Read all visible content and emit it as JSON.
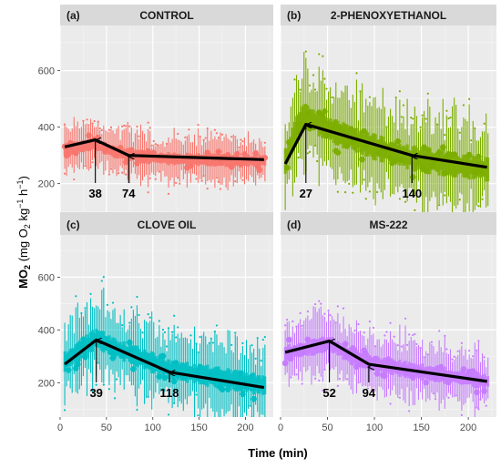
{
  "chart_data": {
    "type": "line",
    "y_axis_label": "MO",
    "y_axis_label_sub": "2",
    "y_axis_units": "(mg O",
    "y_axis_units_sub": "2",
    "y_axis_units_rest": " kg",
    "y_axis_units_sup1": "−1",
    "y_axis_units_h": " h",
    "y_axis_units_sup2": "−1",
    "y_axis_units_close": ")",
    "x_axis_label": "Time (min)",
    "xlim": [
      0,
      230
    ],
    "ylim": [
      70,
      760
    ],
    "x_ticks": [
      0,
      50,
      100,
      150,
      200
    ],
    "y_ticks": [
      200,
      400,
      600
    ],
    "panels": [
      {
        "tag": "(a)",
        "title": "CONTROL",
        "color": "#F8766D",
        "trend": [
          [
            5,
            330
          ],
          [
            38,
            355
          ],
          [
            74,
            300
          ],
          [
            220,
            285
          ]
        ],
        "annotations": [
          {
            "label": "38",
            "x": 38,
            "y": 355,
            "direction": "up"
          },
          {
            "label": "74",
            "x": 74,
            "y": 300,
            "direction": "up"
          }
        ],
        "median_profile": [
          [
            5,
            320
          ],
          [
            20,
            330
          ],
          [
            38,
            340
          ],
          [
            60,
            310
          ],
          [
            100,
            290
          ],
          [
            150,
            285
          ],
          [
            220,
            280
          ]
        ],
        "spread": 80
      },
      {
        "tag": "(b)",
        "title": "2-PHENOXYETHANOL",
        "color": "#7CAE00",
        "trend": [
          [
            5,
            270
          ],
          [
            27,
            410
          ],
          [
            140,
            300
          ],
          [
            220,
            258
          ]
        ],
        "annotations": [
          {
            "label": "27",
            "x": 27,
            "y": 410,
            "direction": "up"
          },
          {
            "label": "140",
            "x": 140,
            "y": 300,
            "direction": "up"
          }
        ],
        "median_profile": [
          [
            5,
            280
          ],
          [
            20,
            420
          ],
          [
            27,
            440
          ],
          [
            60,
            380
          ],
          [
            100,
            330
          ],
          [
            140,
            290
          ],
          [
            220,
            250
          ]
        ],
        "spread": 160
      },
      {
        "tag": "(c)",
        "title": "CLOVE OIL",
        "color": "#00BFC4",
        "trend": [
          [
            5,
            270
          ],
          [
            39,
            362
          ],
          [
            118,
            240
          ],
          [
            220,
            182
          ]
        ],
        "annotations": [
          {
            "label": "39",
            "x": 39,
            "y": 362,
            "direction": "up"
          },
          {
            "label": "118",
            "x": 118,
            "y": 240,
            "direction": "up"
          }
        ],
        "median_profile": [
          [
            5,
            280
          ],
          [
            25,
            330
          ],
          [
            39,
            370
          ],
          [
            60,
            330
          ],
          [
            90,
            290
          ],
          [
            118,
            250
          ],
          [
            170,
            220
          ],
          [
            220,
            190
          ]
        ],
        "spread": 140
      },
      {
        "tag": "(d)",
        "title": "MS-222",
        "color": "#C77CFF",
        "trend": [
          [
            5,
            315
          ],
          [
            52,
            358
          ],
          [
            94,
            270
          ],
          [
            220,
            205
          ]
        ],
        "annotations": [
          {
            "label": "52",
            "x": 52,
            "y": 358,
            "direction": "up"
          },
          {
            "label": "94",
            "x": 94,
            "y": 270,
            "direction": "down"
          }
        ],
        "median_profile": [
          [
            5,
            310
          ],
          [
            30,
            330
          ],
          [
            52,
            350
          ],
          [
            75,
            300
          ],
          [
            94,
            275
          ],
          [
            150,
            240
          ],
          [
            220,
            205
          ]
        ],
        "spread": 110
      }
    ]
  }
}
